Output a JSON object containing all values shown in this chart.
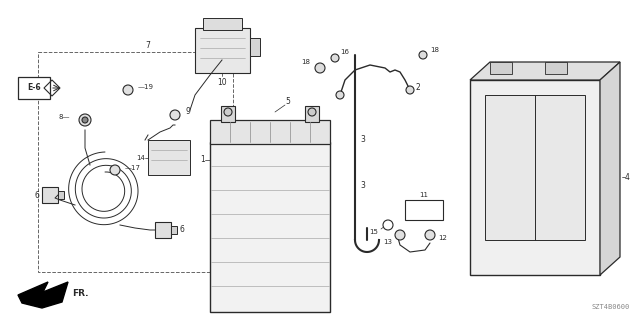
{
  "bg_color": "#ffffff",
  "lc": "#2a2a2a",
  "diagram_code": "SZT4B0600",
  "figsize": [
    6.4,
    3.19
  ],
  "dpi": 100
}
